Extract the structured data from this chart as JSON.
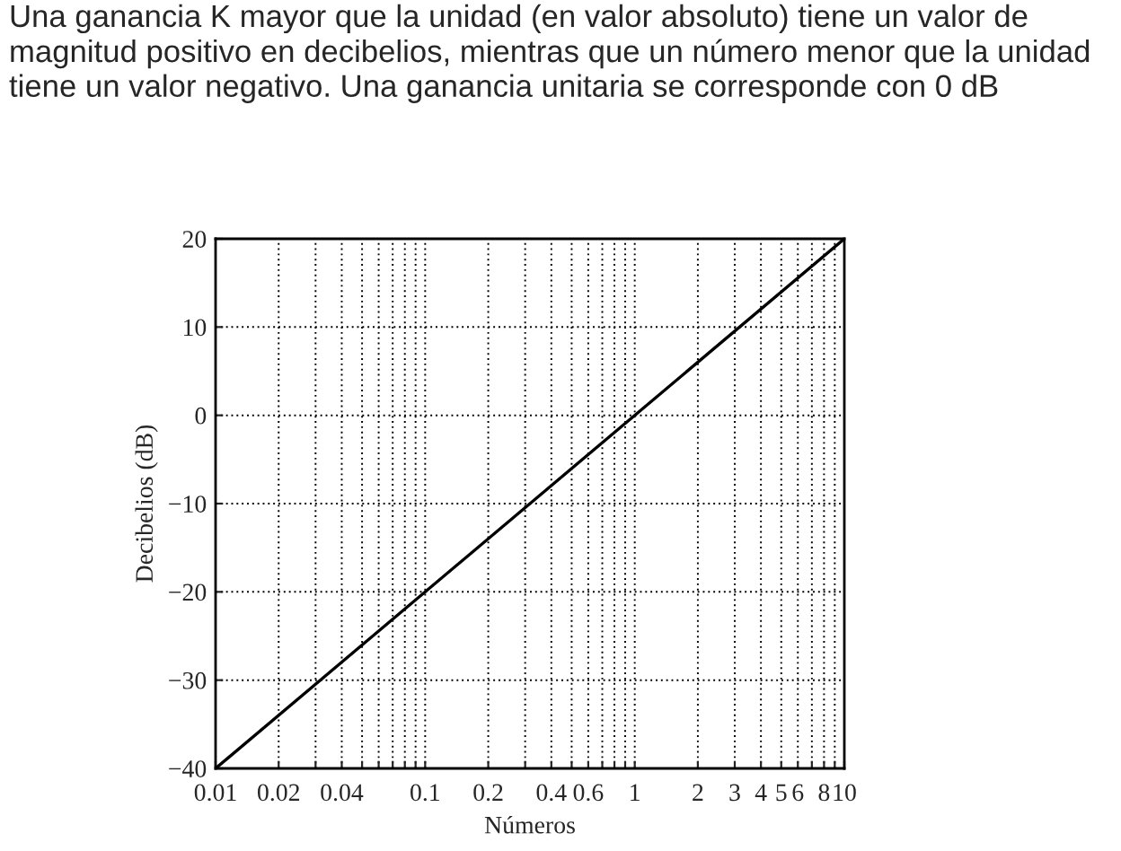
{
  "chart_data": {
    "type": "line",
    "title": "Una ganancia K mayor que la unidad (en valor absoluto) tiene un valor de magnitud positivo en decibelios, mientras que un número menor que la unidad tiene un valor negativo. Una ganancia unitaria se corresponde con 0 dB",
    "xlabel": "Números",
    "ylabel": "Decibelios (dB)",
    "log": "x",
    "grid": true,
    "series": [
      {
        "color": "#000000",
        "x": [
          0.01,
          10
        ],
        "values": [
          -40,
          20
        ]
      }
    ],
    "xlim": [
      0.01,
      10
    ],
    "ylim": [
      -40,
      20
    ],
    "xticks": [
      {
        "value": 0.01,
        "label": "0.01"
      },
      {
        "value": 0.02,
        "label": "0.02"
      },
      {
        "value": 0.03,
        "label": null
      },
      {
        "value": 0.04,
        "label": "0.04"
      },
      {
        "value": 0.05,
        "label": null
      },
      {
        "value": 0.06,
        "label": null
      },
      {
        "value": 0.07,
        "label": null
      },
      {
        "value": 0.08,
        "label": null
      },
      {
        "value": 0.09,
        "label": null
      },
      {
        "value": 0.1,
        "label": "0.1"
      },
      {
        "value": 0.2,
        "label": "0.2"
      },
      {
        "value": 0.3,
        "label": null
      },
      {
        "value": 0.4,
        "label": "0.4"
      },
      {
        "value": 0.5,
        "label": null
      },
      {
        "value": 0.6,
        "label": "0.6"
      },
      {
        "value": 0.7,
        "label": null
      },
      {
        "value": 0.8,
        "label": null
      },
      {
        "value": 0.9,
        "label": null
      },
      {
        "value": 1,
        "label": "1"
      },
      {
        "value": 2,
        "label": "2"
      },
      {
        "value": 3,
        "label": "3"
      },
      {
        "value": 4,
        "label": "4"
      },
      {
        "value": 5,
        "label": "5"
      },
      {
        "value": 6,
        "label": "6"
      },
      {
        "value": 7,
        "label": null
      },
      {
        "value": 8,
        "label": "8"
      },
      {
        "value": 9,
        "label": null
      },
      {
        "value": 10,
        "label": "10"
      }
    ],
    "yticks": [
      -40,
      -30,
      -20,
      -10,
      0,
      10,
      20
    ]
  }
}
